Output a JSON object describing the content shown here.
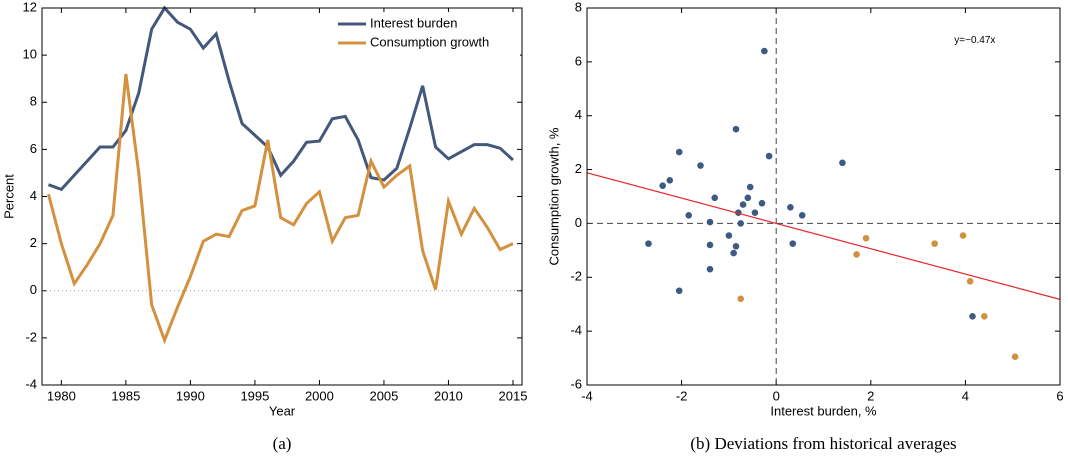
{
  "chart_data": [
    {
      "type": "line",
      "caption": "(a)",
      "x_label": "Year",
      "y_label": "Percent",
      "x": [
        1979,
        1980,
        1981,
        1982,
        1983,
        1984,
        1985,
        1986,
        1987,
        1988,
        1989,
        1990,
        1991,
        1992,
        1993,
        1994,
        1995,
        1996,
        1997,
        1998,
        1999,
        2000,
        2001,
        2002,
        2003,
        2004,
        2005,
        2006,
        2007,
        2008,
        2009,
        2010,
        2011,
        2012,
        2013,
        2014,
        2015
      ],
      "series": [
        {
          "name": "Interest burden",
          "color": "#43587b",
          "values": [
            4.5,
            4.3,
            4.9,
            5.5,
            6.1,
            6.1,
            6.8,
            8.4,
            11.1,
            12.0,
            11.4,
            11.1,
            10.3,
            10.9,
            8.9,
            7.1,
            6.6,
            6.1,
            4.9,
            5.5,
            6.3,
            6.35,
            7.3,
            7.4,
            6.4,
            4.8,
            4.7,
            5.2,
            6.9,
            8.7,
            6.1,
            5.6,
            5.9,
            6.2,
            6.2,
            6.05,
            5.55
          ]
        },
        {
          "name": "Consumption growth",
          "color": "#d3913e",
          "values": [
            4.1,
            2.0,
            0.3,
            1.1,
            2.0,
            3.2,
            9.2,
            5.0,
            -0.6,
            -2.1,
            -0.7,
            0.6,
            2.1,
            2.4,
            2.3,
            3.4,
            3.6,
            6.4,
            3.1,
            2.8,
            3.7,
            4.2,
            2.1,
            3.1,
            3.2,
            5.5,
            4.4,
            4.9,
            5.3,
            1.7,
            0.05,
            3.8,
            2.4,
            3.5,
            2.7,
            1.75,
            2.0
          ]
        }
      ],
      "xlim": [
        1978.5,
        2015.7
      ],
      "xticks": [
        1980,
        1985,
        1990,
        1995,
        2000,
        2005,
        2010,
        2015
      ],
      "ylim": [
        -4,
        12
      ],
      "yticks": [
        -4,
        -2,
        0,
        2,
        4,
        6,
        8,
        10,
        12
      ],
      "ref_y": 0,
      "legend": "upper-right"
    },
    {
      "type": "scatter",
      "caption": "(b) Deviations from historical averages",
      "x_label": "Interest burden, %",
      "y_label": "Consumption growth, %",
      "annotation": "y=−0.47x",
      "fit_slope": -0.47,
      "fit_color": "#e8262b",
      "series": [
        {
          "color": "#3f5a82",
          "x": [
            -2.7,
            -2.4,
            -2.25,
            -2.05,
            -1.85,
            -2.05,
            -1.6,
            -1.3,
            -1.4,
            -1.4,
            -1.4,
            -1.0,
            -0.85,
            -0.8,
            -0.9,
            -0.85,
            -0.75,
            -0.7,
            -0.6,
            -0.55,
            -0.45,
            -0.3,
            -0.25,
            -0.15,
            0.3,
            0.55,
            0.35,
            1.4,
            4.15
          ],
          "y": [
            -0.75,
            1.4,
            1.6,
            2.65,
            0.3,
            -2.5,
            2.15,
            0.95,
            0.05,
            -0.8,
            -1.7,
            -0.45,
            3.5,
            0.4,
            -1.1,
            -0.85,
            0.0,
            0.7,
            0.95,
            1.35,
            0.4,
            0.75,
            6.4,
            2.5,
            0.6,
            0.3,
            -0.75,
            2.25,
            -3.45
          ]
        },
        {
          "color": "#d0903f",
          "x": [
            -0.75,
            1.7,
            1.9,
            3.35,
            3.95,
            4.1,
            4.4,
            5.05
          ],
          "y": [
            -2.8,
            -1.15,
            -0.55,
            -0.75,
            -0.45,
            -2.15,
            -3.45,
            -4.95
          ]
        }
      ],
      "xlim": [
        -4,
        6
      ],
      "xticks": [
        -4,
        -2,
        0,
        2,
        4,
        6
      ],
      "ylim": [
        -6,
        8
      ],
      "yticks": [
        -6,
        -4,
        -2,
        0,
        2,
        4,
        6,
        8
      ],
      "ref_x": 0,
      "ref_y": 0
    }
  ]
}
